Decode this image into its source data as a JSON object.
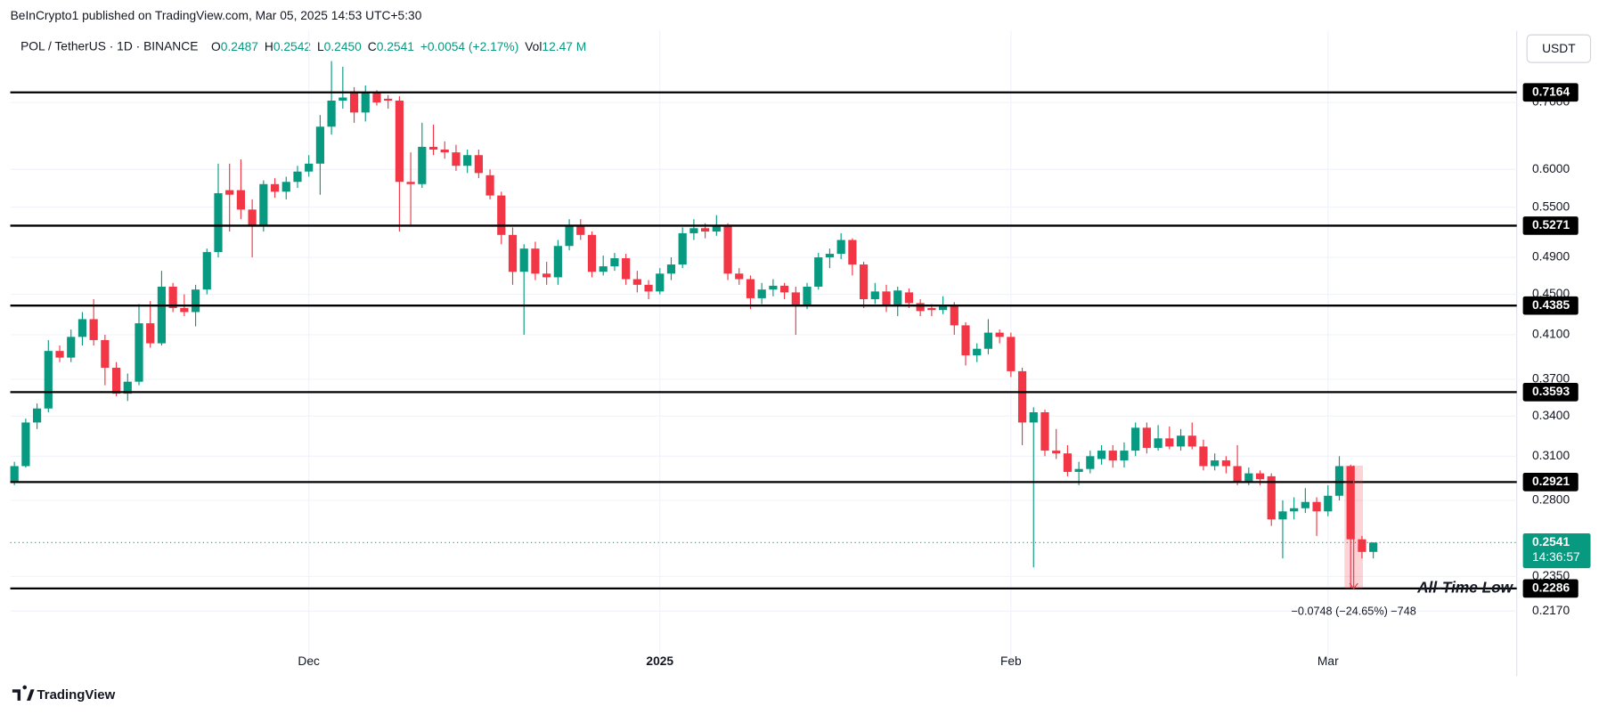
{
  "chart_data": {
    "type": "candlestick",
    "published": "BeInCrypto1 published on TradingView.com, Mar 05, 2025 14:53 UTC+5:30",
    "symbol": "POL / TetherUS · 1D · BINANCE",
    "legend": [
      {
        "key": "O",
        "text": "0.2487"
      },
      {
        "key": "H",
        "text": "0.2542"
      },
      {
        "key": "L",
        "text": "0.2450"
      },
      {
        "key": "C",
        "text": "0.2541"
      },
      {
        "key": "",
        "text": "+0.0054 (+2.17%)"
      },
      {
        "key": "Vol",
        "text": "12.47 M"
      }
    ],
    "currency": "USDT",
    "brand": "TradingView",
    "log_scale": true,
    "grid": true,
    "up_color": "#089981",
    "down_color": "#f23645",
    "level_color": "#000000",
    "ylim": [
      0.1913,
      0.8257
    ],
    "yticks": [
      {
        "value": 0.7,
        "label": "0.7000"
      },
      {
        "value": 0.6,
        "label": "0.6000"
      },
      {
        "value": 0.55,
        "label": "0.5500"
      },
      {
        "value": 0.49,
        "label": "0.4900"
      },
      {
        "value": 0.45,
        "label": "0.4500"
      },
      {
        "value": 0.41,
        "label": "0.4100"
      },
      {
        "value": 0.37,
        "label": "0.3700"
      },
      {
        "value": 0.34,
        "label": "0.3400"
      },
      {
        "value": 0.31,
        "label": "0.3100"
      },
      {
        "value": 0.28,
        "label": "0.2800"
      },
      {
        "value": 0.235,
        "label": "0.2350"
      },
      {
        "value": 0.217,
        "label": "0.2170"
      }
    ],
    "levels": [
      0.7164,
      0.5271,
      0.4385,
      0.3593,
      0.2921,
      0.2286
    ],
    "level_annotation": "All-Time Low",
    "current_price": 0.2541,
    "countdown": "14:36:57",
    "measure": {
      "from": 0.3034,
      "to": 0.2286,
      "label": "−0.0748 (−24.65%) −748"
    },
    "categories": [
      null,
      null,
      null,
      null,
      null,
      null,
      null,
      null,
      null,
      null,
      null,
      null,
      null,
      null,
      null,
      null,
      null,
      null,
      null,
      null,
      null,
      null,
      null,
      null,
      null,
      null,
      "Dec",
      null,
      null,
      null,
      null,
      null,
      null,
      null,
      null,
      null,
      null,
      null,
      null,
      null,
      null,
      null,
      null,
      null,
      null,
      null,
      null,
      null,
      null,
      null,
      null,
      null,
      null,
      null,
      null,
      null,
      null,
      "2025",
      null,
      null,
      null,
      null,
      null,
      null,
      null,
      null,
      null,
      null,
      null,
      null,
      null,
      null,
      null,
      null,
      null,
      null,
      null,
      null,
      null,
      null,
      null,
      null,
      null,
      null,
      null,
      null,
      null,
      null,
      "Feb",
      null,
      null,
      null,
      null,
      null,
      null,
      null,
      null,
      null,
      null,
      null,
      null,
      null,
      null,
      null,
      null,
      null,
      null,
      null,
      null,
      null,
      null,
      null,
      null,
      null,
      null,
      null,
      "Mar",
      null,
      null,
      null,
      null
    ],
    "candles": [
      [
        0.292,
        0.306,
        0.29,
        0.303
      ],
      [
        0.303,
        0.338,
        0.302,
        0.335
      ],
      [
        0.335,
        0.35,
        0.33,
        0.346
      ],
      [
        0.346,
        0.405,
        0.343,
        0.395
      ],
      [
        0.395,
        0.4,
        0.385,
        0.389
      ],
      [
        0.389,
        0.415,
        0.385,
        0.408
      ],
      [
        0.408,
        0.432,
        0.4,
        0.425
      ],
      [
        0.425,
        0.445,
        0.4,
        0.405
      ],
      [
        0.405,
        0.41,
        0.365,
        0.38
      ],
      [
        0.38,
        0.385,
        0.356,
        0.358
      ],
      [
        0.358,
        0.375,
        0.352,
        0.368
      ],
      [
        0.368,
        0.44,
        0.365,
        0.421
      ],
      [
        0.421,
        0.443,
        0.398,
        0.402
      ],
      [
        0.402,
        0.475,
        0.4,
        0.458
      ],
      [
        0.458,
        0.462,
        0.432,
        0.436
      ],
      [
        0.436,
        0.45,
        0.428,
        0.432
      ],
      [
        0.432,
        0.46,
        0.418,
        0.455
      ],
      [
        0.455,
        0.5,
        0.45,
        0.496
      ],
      [
        0.496,
        0.608,
        0.49,
        0.568
      ],
      [
        0.572,
        0.608,
        0.52,
        0.566
      ],
      [
        0.572,
        0.614,
        0.535,
        0.547
      ],
      [
        0.547,
        0.56,
        0.49,
        0.527
      ],
      [
        0.527,
        0.585,
        0.52,
        0.58
      ],
      [
        0.58,
        0.588,
        0.562,
        0.57
      ],
      [
        0.57,
        0.59,
        0.56,
        0.583
      ],
      [
        0.583,
        0.605,
        0.575,
        0.597
      ],
      [
        0.597,
        0.62,
        0.59,
        0.608
      ],
      [
        0.608,
        0.68,
        0.566,
        0.662
      ],
      [
        0.662,
        0.77,
        0.65,
        0.703
      ],
      [
        0.703,
        0.76,
        0.69,
        0.708
      ],
      [
        0.718,
        0.725,
        0.668,
        0.684
      ],
      [
        0.684,
        0.728,
        0.67,
        0.716
      ],
      [
        0.716,
        0.72,
        0.695,
        0.7
      ],
      [
        0.706,
        0.712,
        0.69,
        0.703
      ],
      [
        0.703,
        0.71,
        0.52,
        0.583
      ],
      [
        0.583,
        0.624,
        0.527,
        0.58
      ],
      [
        0.58,
        0.668,
        0.575,
        0.632
      ],
      [
        0.632,
        0.665,
        0.62,
        0.628
      ],
      [
        0.628,
        0.64,
        0.615,
        0.624
      ],
      [
        0.624,
        0.635,
        0.598,
        0.605
      ],
      [
        0.605,
        0.628,
        0.595,
        0.62
      ],
      [
        0.62,
        0.628,
        0.588,
        0.595
      ],
      [
        0.592,
        0.6,
        0.56,
        0.565
      ],
      [
        0.565,
        0.57,
        0.505,
        0.516
      ],
      [
        0.516,
        0.525,
        0.46,
        0.474
      ],
      [
        0.474,
        0.505,
        0.41,
        0.5
      ],
      [
        0.5,
        0.508,
        0.465,
        0.472
      ],
      [
        0.472,
        0.485,
        0.46,
        0.468
      ],
      [
        0.468,
        0.51,
        0.46,
        0.503
      ],
      [
        0.503,
        0.535,
        0.498,
        0.528
      ],
      [
        0.528,
        0.535,
        0.51,
        0.516
      ],
      [
        0.516,
        0.52,
        0.468,
        0.474
      ],
      [
        0.474,
        0.492,
        0.47,
        0.48
      ],
      [
        0.48,
        0.495,
        0.475,
        0.489
      ],
      [
        0.489,
        0.494,
        0.46,
        0.466
      ],
      [
        0.466,
        0.475,
        0.452,
        0.46
      ],
      [
        0.46,
        0.465,
        0.445,
        0.453
      ],
      [
        0.453,
        0.478,
        0.45,
        0.472
      ],
      [
        0.472,
        0.49,
        0.465,
        0.482
      ],
      [
        0.482,
        0.525,
        0.478,
        0.518
      ],
      [
        0.518,
        0.535,
        0.51,
        0.524
      ],
      [
        0.524,
        0.53,
        0.512,
        0.52
      ],
      [
        0.52,
        0.54,
        0.515,
        0.526
      ],
      [
        0.526,
        0.53,
        0.465,
        0.472
      ],
      [
        0.472,
        0.478,
        0.46,
        0.466
      ],
      [
        0.466,
        0.47,
        0.435,
        0.446
      ],
      [
        0.446,
        0.462,
        0.44,
        0.455
      ],
      [
        0.455,
        0.466,
        0.448,
        0.459
      ],
      [
        0.459,
        0.462,
        0.445,
        0.452
      ],
      [
        0.452,
        0.458,
        0.41,
        0.438
      ],
      [
        0.438,
        0.462,
        0.435,
        0.458
      ],
      [
        0.458,
        0.495,
        0.455,
        0.49
      ],
      [
        0.49,
        0.5,
        0.478,
        0.494
      ],
      [
        0.494,
        0.518,
        0.488,
        0.51
      ],
      [
        0.51,
        0.512,
        0.47,
        0.482
      ],
      [
        0.482,
        0.485,
        0.436,
        0.445
      ],
      [
        0.445,
        0.462,
        0.44,
        0.453
      ],
      [
        0.453,
        0.46,
        0.432,
        0.438
      ],
      [
        0.438,
        0.458,
        0.428,
        0.454
      ],
      [
        0.452,
        0.456,
        0.436,
        0.441
      ],
      [
        0.441,
        0.445,
        0.428,
        0.433
      ],
      [
        0.436,
        0.44,
        0.428,
        0.434
      ],
      [
        0.434,
        0.448,
        0.43,
        0.438
      ],
      [
        0.438,
        0.442,
        0.41,
        0.419
      ],
      [
        0.419,
        0.422,
        0.382,
        0.391
      ],
      [
        0.391,
        0.402,
        0.385,
        0.397
      ],
      [
        0.397,
        0.425,
        0.392,
        0.412
      ],
      [
        0.412,
        0.415,
        0.402,
        0.408
      ],
      [
        0.408,
        0.412,
        0.372,
        0.377
      ],
      [
        0.377,
        0.38,
        0.318,
        0.335
      ],
      [
        0.335,
        0.347,
        0.24,
        0.343
      ],
      [
        0.343,
        0.345,
        0.31,
        0.314
      ],
      [
        0.314,
        0.33,
        0.308,
        0.312
      ],
      [
        0.312,
        0.318,
        0.296,
        0.299
      ],
      [
        0.299,
        0.306,
        0.29,
        0.301
      ],
      [
        0.301,
        0.314,
        0.298,
        0.31
      ],
      [
        0.308,
        0.318,
        0.304,
        0.314
      ],
      [
        0.314,
        0.318,
        0.302,
        0.307
      ],
      [
        0.307,
        0.32,
        0.302,
        0.314
      ],
      [
        0.314,
        0.335,
        0.31,
        0.331
      ],
      [
        0.331,
        0.335,
        0.312,
        0.316
      ],
      [
        0.316,
        0.333,
        0.314,
        0.323
      ],
      [
        0.323,
        0.332,
        0.315,
        0.317
      ],
      [
        0.317,
        0.33,
        0.314,
        0.325
      ],
      [
        0.325,
        0.335,
        0.315,
        0.317
      ],
      [
        0.317,
        0.322,
        0.3,
        0.303
      ],
      [
        0.303,
        0.312,
        0.3,
        0.307
      ],
      [
        0.307,
        0.31,
        0.298,
        0.303
      ],
      [
        0.303,
        0.318,
        0.29,
        0.292
      ],
      [
        0.292,
        0.302,
        0.29,
        0.298
      ],
      [
        0.298,
        0.3,
        0.29,
        0.294
      ],
      [
        0.296,
        0.298,
        0.264,
        0.268
      ],
      [
        0.268,
        0.28,
        0.245,
        0.273
      ],
      [
        0.273,
        0.282,
        0.268,
        0.275
      ],
      [
        0.275,
        0.288,
        0.272,
        0.279
      ],
      [
        0.279,
        0.282,
        0.258,
        0.273
      ],
      [
        0.273,
        0.29,
        0.27,
        0.283
      ],
      [
        0.283,
        0.31,
        0.28,
        0.303
      ],
      [
        0.303,
        0.304,
        0.2286,
        0.256
      ],
      [
        0.256,
        0.258,
        0.245,
        0.2487
      ],
      [
        0.2487,
        0.2542,
        0.245,
        0.2541
      ]
    ]
  }
}
